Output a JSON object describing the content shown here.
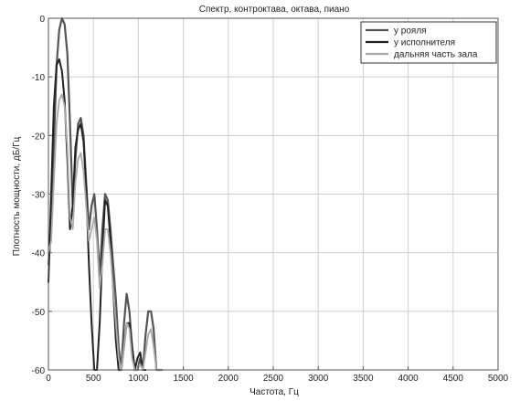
{
  "chart_data": {
    "type": "line",
    "title": "Спектр, контроктава, октава, пиано",
    "xlabel": "Частота, Гц",
    "ylabel": "Плотность мощности, дБ/Гц",
    "xlim": [
      0,
      5000
    ],
    "ylim": [
      -60,
      0
    ],
    "xticks": [
      0,
      500,
      1000,
      1500,
      2000,
      2500,
      3000,
      3500,
      4000,
      4500,
      5000
    ],
    "yticks": [
      0,
      -10,
      -20,
      -30,
      -40,
      -50,
      -60
    ],
    "xtick_labels": [
      "0",
      "500",
      "1000",
      "1500",
      "2000",
      "2500",
      "3000",
      "3500",
      "4000",
      "4500",
      "5000"
    ],
    "ytick_labels": [
      "0",
      "-10",
      "-20",
      "-30",
      "-40",
      "-50",
      "-60"
    ],
    "grid": true,
    "legend_position": "top-right",
    "series": [
      {
        "name": "у рояля",
        "color": "#555555",
        "x": [
          0,
          30,
          60,
          90,
          120,
          150,
          180,
          210,
          240,
          270,
          300,
          330,
          360,
          390,
          420,
          450,
          480,
          510,
          540,
          570,
          600,
          630,
          660,
          690,
          720,
          750,
          780,
          810,
          840,
          870,
          900,
          930,
          960,
          990,
          1020,
          1050,
          1080,
          1110,
          1140,
          1170,
          1200,
          1230,
          1260
        ],
        "y": [
          -42,
          -36,
          -22,
          -8,
          -2,
          0,
          -1,
          -6,
          -18,
          -32,
          -24,
          -18,
          -17,
          -20,
          -28,
          -36,
          -32,
          -30,
          -36,
          -44,
          -36,
          -30,
          -31,
          -36,
          -42,
          -48,
          -56,
          -60,
          -52,
          -47,
          -50,
          -56,
          -60,
          -60,
          -58,
          -60,
          -54,
          -50,
          -50,
          -53,
          -60,
          -60,
          -60
        ]
      },
      {
        "name": "у исполнителя",
        "color": "#222222",
        "x": [
          0,
          30,
          60,
          90,
          120,
          150,
          180,
          210,
          240,
          270,
          300,
          330,
          360,
          390,
          420,
          450,
          480,
          510,
          540,
          570,
          600,
          630,
          660,
          690,
          720,
          750,
          780,
          810,
          840,
          870,
          900,
          930,
          960,
          990,
          1020,
          1050,
          1080
        ],
        "y": [
          -45,
          -30,
          -15,
          -8,
          -7,
          -9,
          -14,
          -24,
          -36,
          -32,
          -22,
          -19,
          -18,
          -21,
          -29,
          -42,
          -52,
          -60,
          -60,
          -52,
          -40,
          -31,
          -32,
          -38,
          -46,
          -55,
          -60,
          -60,
          -56,
          -52,
          -52,
          -56,
          -60,
          -58,
          -57,
          -60,
          -60
        ]
      },
      {
        "name": "дальняя часть зала",
        "color": "#aaaaaa",
        "x": [
          0,
          30,
          60,
          90,
          120,
          150,
          180,
          210,
          240,
          270,
          300,
          330,
          360,
          390,
          420,
          450,
          480,
          510,
          540,
          570,
          600,
          630,
          660,
          690,
          720,
          750,
          780,
          810,
          840,
          870,
          900,
          930,
          960,
          990,
          1020,
          1050,
          1080,
          1110,
          1140,
          1170,
          1200,
          1230,
          1260
        ],
        "y": [
          -40,
          -38,
          -28,
          -18,
          -14,
          -13,
          -15,
          -22,
          -34,
          -36,
          -28,
          -24,
          -23,
          -26,
          -32,
          -38,
          -36,
          -34,
          -38,
          -46,
          -42,
          -36,
          -36,
          -40,
          -46,
          -52,
          -58,
          -60,
          -56,
          -52,
          -53,
          -58,
          -60,
          -60,
          -59,
          -60,
          -57,
          -54,
          -53,
          -56,
          -60,
          -60,
          -60
        ]
      }
    ]
  }
}
